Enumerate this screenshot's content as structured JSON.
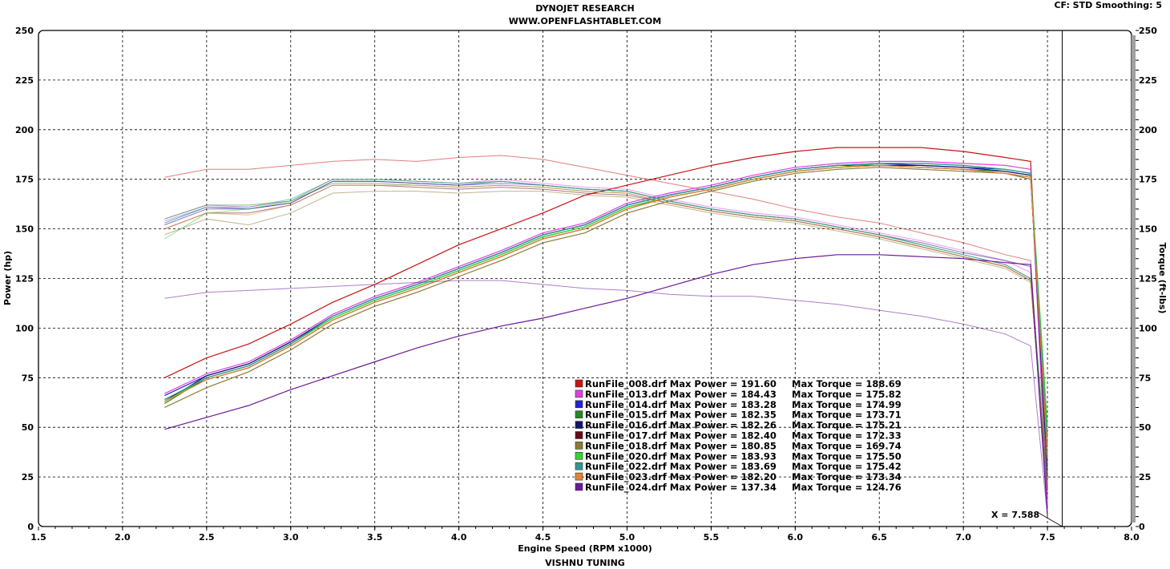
{
  "header": {
    "title": "DYNOJET RESEARCH",
    "subtitle": "WWW.OPENFLASHTABLET.COM",
    "settings": "CF: STD  Smoothing: 5",
    "footer": "VISHNU TUNING"
  },
  "cursor": {
    "label": "X = 7.588",
    "x": 7.588
  },
  "chart_data": {
    "type": "line",
    "xlabel": "Engine Speed (RPM x1000)",
    "ylabel": "Power (hp)",
    "y2label": "Torque (ft-lbs)",
    "xlim": [
      1.5,
      8.0
    ],
    "ylim": [
      0,
      250
    ],
    "y2lim": [
      0,
      250
    ],
    "xticks": [
      "1.5",
      "2.0",
      "2.5",
      "3.0",
      "3.5",
      "4.0",
      "4.5",
      "5.0",
      "5.5",
      "6.0",
      "6.5",
      "7.0",
      "7.5",
      "8.0"
    ],
    "yticks": [
      "0",
      "25",
      "50",
      "75",
      "100",
      "125",
      "150",
      "175",
      "200",
      "225",
      "250"
    ],
    "grid": true,
    "legend_position": "bottom-center",
    "x": [
      2.25,
      2.5,
      2.75,
      3.0,
      3.25,
      3.5,
      3.75,
      4.0,
      4.25,
      4.5,
      4.75,
      5.0,
      5.25,
      5.5,
      5.75,
      6.0,
      6.25,
      6.5,
      6.75,
      7.0,
      7.25,
      7.4,
      7.5
    ],
    "series": [
      {
        "name": "RunFile_008.drf",
        "max_power": "191.60",
        "max_torque": "188.69",
        "color": "#c81414",
        "power": [
          75,
          85,
          92,
          102,
          113,
          122,
          132,
          142,
          150,
          158,
          167,
          172,
          177,
          182,
          186,
          189,
          191,
          191,
          191,
          189,
          186,
          184,
          20
        ],
        "torque": [
          176,
          180,
          180,
          182,
          184,
          185,
          184,
          186,
          187,
          185,
          181,
          177,
          173,
          169,
          165,
          160,
          156,
          153,
          148,
          143,
          137,
          134,
          10
        ]
      },
      {
        "name": "RunFile_013.drf",
        "max_power": "184.43",
        "max_torque": "175.82",
        "color": "#e040e0",
        "power": [
          67,
          77,
          83,
          94,
          107,
          116,
          123,
          131,
          139,
          148,
          153,
          163,
          168,
          172,
          177,
          181,
          183,
          184,
          184,
          183,
          182,
          180,
          10
        ],
        "torque": [
          155,
          162,
          161,
          164,
          175,
          175,
          174,
          173,
          175,
          173,
          171,
          170,
          165,
          161,
          158,
          156,
          152,
          148,
          144,
          139,
          134,
          128,
          8
        ]
      },
      {
        "name": "RunFile_014.drf",
        "max_power": "183.28",
        "max_torque": "174.99",
        "color": "#2323d2",
        "power": [
          66,
          76,
          82,
          93,
          106,
          115,
          122,
          130,
          138,
          147,
          152,
          162,
          167,
          171,
          176,
          180,
          182,
          183,
          182,
          181,
          180,
          178,
          25
        ],
        "torque": [
          153,
          161,
          160,
          163,
          174,
          174,
          173,
          172,
          173,
          172,
          170,
          169,
          164,
          160,
          157,
          155,
          151,
          147,
          142,
          137,
          132,
          125,
          15
        ]
      },
      {
        "name": "RunFile_015.drf",
        "max_power": "182.35",
        "max_torque": "173.71",
        "color": "#238a23",
        "power": [
          62,
          75,
          81,
          92,
          105,
          114,
          121,
          129,
          137,
          146,
          151,
          161,
          166,
          170,
          175,
          179,
          181,
          182,
          181,
          180,
          179,
          177,
          40
        ],
        "torque": [
          155,
          162,
          162,
          164,
          173,
          173,
          172,
          171,
          172,
          171,
          169,
          168,
          163,
          159,
          156,
          154,
          150,
          146,
          141,
          136,
          131,
          124,
          20
        ]
      },
      {
        "name": "RunFile_016.drf",
        "max_power": "182.26",
        "max_torque": "175.21",
        "color": "#14146e",
        "power": [
          63,
          76,
          82,
          93,
          106,
          115,
          122,
          130,
          138,
          147,
          152,
          162,
          167,
          171,
          176,
          180,
          182,
          182,
          182,
          181,
          179,
          177,
          30
        ],
        "torque": [
          152,
          160,
          160,
          163,
          174,
          174,
          173,
          172,
          174,
          172,
          170,
          169,
          164,
          160,
          157,
          155,
          151,
          147,
          143,
          138,
          134,
          131,
          18
        ]
      },
      {
        "name": "RunFile_017.drf",
        "max_power": "182.40",
        "max_torque": "172.33",
        "color": "#640a14",
        "power": [
          64,
          74,
          80,
          91,
          104,
          113,
          120,
          128,
          136,
          145,
          150,
          160,
          166,
          170,
          175,
          179,
          181,
          182,
          181,
          180,
          178,
          176,
          35
        ],
        "torque": [
          150,
          158,
          158,
          162,
          172,
          172,
          171,
          170,
          171,
          170,
          168,
          167,
          163,
          159,
          156,
          154,
          150,
          146,
          141,
          136,
          131,
          124,
          18
        ]
      },
      {
        "name": "RunFile_018.drf",
        "max_power": "180.85",
        "max_torque": "169.74",
        "color": "#8c7a32",
        "power": [
          60,
          70,
          78,
          89,
          102,
          111,
          118,
          126,
          134,
          143,
          148,
          158,
          164,
          169,
          174,
          178,
          180,
          181,
          180,
          179,
          178,
          175,
          45
        ],
        "torque": [
          147,
          155,
          152,
          158,
          168,
          169,
          169,
          168,
          169,
          169,
          167,
          166,
          162,
          158,
          155,
          153,
          149,
          145,
          140,
          135,
          130,
          123,
          22
        ]
      },
      {
        "name": "RunFile_020.drf",
        "max_power": "183.93",
        "max_torque": "175.50",
        "color": "#32d232",
        "power": [
          63,
          75,
          81,
          92,
          105,
          114,
          121,
          129,
          137,
          146,
          151,
          161,
          166,
          170,
          175,
          179,
          181,
          183,
          183,
          182,
          180,
          178,
          50
        ],
        "torque": [
          145,
          158,
          160,
          164,
          175,
          175,
          174,
          173,
          174,
          172,
          170,
          169,
          164,
          160,
          157,
          155,
          151,
          147,
          142,
          137,
          132,
          125,
          30
        ]
      },
      {
        "name": "RunFile_022.drf",
        "max_power": "183.69",
        "max_torque": "175.42",
        "color": "#329696",
        "power": [
          64,
          75,
          81,
          92,
          106,
          115,
          122,
          130,
          138,
          147,
          152,
          162,
          167,
          171,
          176,
          180,
          182,
          183,
          183,
          182,
          180,
          178,
          40
        ],
        "torque": [
          154,
          161,
          161,
          165,
          175,
          175,
          174,
          173,
          174,
          172,
          170,
          169,
          164,
          160,
          157,
          155,
          151,
          147,
          142,
          137,
          132,
          125,
          20
        ]
      },
      {
        "name": "RunFile_023.drf",
        "max_power": "182.20",
        "max_torque": "173.34",
        "color": "#e68232",
        "power": [
          63,
          74,
          80,
          91,
          104,
          113,
          120,
          128,
          136,
          145,
          150,
          160,
          166,
          170,
          175,
          179,
          181,
          182,
          181,
          180,
          178,
          176,
          35
        ],
        "torque": [
          150,
          158,
          157,
          162,
          172,
          172,
          172,
          171,
          172,
          171,
          169,
          168,
          163,
          159,
          156,
          154,
          150,
          146,
          141,
          136,
          131,
          124,
          18
        ]
      },
      {
        "name": "RunFile_024.drf",
        "max_power": "137.34",
        "max_torque": "124.76",
        "color": "#6a1a9a",
        "power": [
          49,
          55,
          61,
          69,
          76,
          83,
          90,
          96,
          101,
          105,
          110,
          115,
          121,
          127,
          132,
          135,
          137,
          137,
          136,
          135,
          133,
          132,
          5
        ],
        "torque": [
          115,
          118,
          119,
          120,
          121,
          122,
          123,
          124,
          124,
          122,
          120,
          119,
          117,
          116,
          116,
          114,
          112,
          109,
          106,
          102,
          97,
          91,
          5
        ]
      }
    ]
  }
}
